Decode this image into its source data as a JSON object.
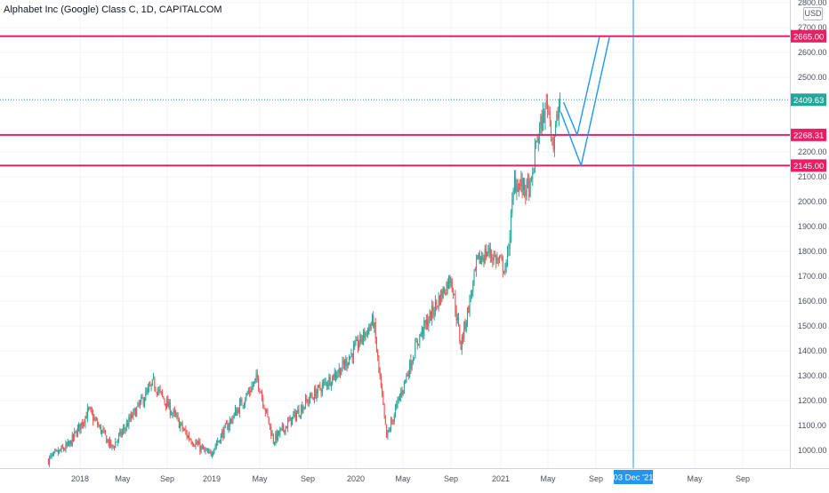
{
  "header": {
    "title": "Alphabet Inc (Google) Class C, 1D, CAPITALCOM",
    "currency": "USD"
  },
  "colors": {
    "up": "#26a69a",
    "down": "#ef5350",
    "level_line": "#e91e63",
    "projection": "#2196f3",
    "last_price": "#26a69a"
  },
  "chart_data": {
    "type": "candlestick",
    "x_tick_labels": [
      "2018",
      "May",
      "Sep",
      "2019",
      "May",
      "Sep",
      "2020",
      "May",
      "Sep",
      "2021",
      "May",
      "Sep",
      "03 Dec '21",
      "May",
      "Sep"
    ],
    "y_tick_labels": [
      "1000.00",
      "1100.00",
      "1200.00",
      "1300.00",
      "1400.00",
      "1500.00",
      "1600.00",
      "1700.00",
      "1800.00",
      "1900.00",
      "2000.00",
      "2100.00",
      "2200.00",
      "2500.00",
      "2600.00",
      "2700.00",
      "2800.00"
    ],
    "ylim": [
      960,
      2810
    ],
    "series_points": [
      {
        "date": "2017-10-01",
        "close": 960
      },
      {
        "date": "2017-12-01",
        "close": 1020
      },
      {
        "date": "2018-01-25",
        "close": 1160
      },
      {
        "date": "2018-04-01",
        "close": 1010
      },
      {
        "date": "2018-07-25",
        "close": 1270
      },
      {
        "date": "2018-10-25",
        "close": 1060
      },
      {
        "date": "2018-12-24",
        "close": 980
      },
      {
        "date": "2019-04-25",
        "close": 1290
      },
      {
        "date": "2019-06-05",
        "close": 1040
      },
      {
        "date": "2019-09-01",
        "close": 1200
      },
      {
        "date": "2019-12-01",
        "close": 1340
      },
      {
        "date": "2020-02-15",
        "close": 1520
      },
      {
        "date": "2020-03-20",
        "close": 1050
      },
      {
        "date": "2020-06-10",
        "close": 1450
      },
      {
        "date": "2020-09-01",
        "close": 1700
      },
      {
        "date": "2020-09-25",
        "close": 1420
      },
      {
        "date": "2020-11-05",
        "close": 1760
      },
      {
        "date": "2020-12-01",
        "close": 1800
      },
      {
        "date": "2021-01-15",
        "close": 1730
      },
      {
        "date": "2021-02-05",
        "close": 2080
      },
      {
        "date": "2021-03-05",
        "close": 2050
      },
      {
        "date": "2021-03-20",
        "close": 2060
      },
      {
        "date": "2021-04-01",
        "close": 2240
      },
      {
        "date": "2021-04-30",
        "close": 2400
      },
      {
        "date": "2021-05-15",
        "close": 2230
      },
      {
        "date": "2021-06-01",
        "close": 2409.63
      }
    ],
    "last_price": 2409.63,
    "horizontal_levels": [
      2665.0,
      2268.31,
      2145.0
    ],
    "projection_paths": [
      [
        {
          "date": "2021-06-03",
          "value": 2360
        },
        {
          "date": "2021-07-25",
          "value": 2145
        },
        {
          "date": "2021-10-05",
          "value": 2665
        }
      ],
      [
        {
          "date": "2021-06-10",
          "value": 2400
        },
        {
          "date": "2021-07-15",
          "value": 2268
        },
        {
          "date": "2021-09-10",
          "value": 2665
        }
      ]
    ],
    "vertical_marker_label": "03 Dec '21",
    "grid": true
  }
}
